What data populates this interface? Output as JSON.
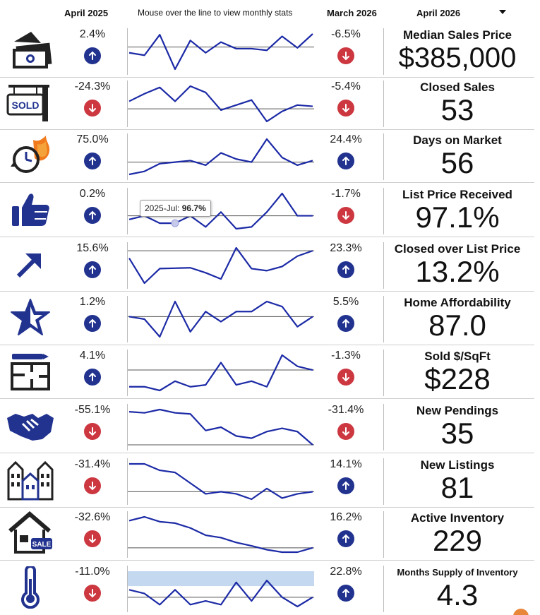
{
  "header": {
    "yoy_label": "April 2025",
    "spark_label": "Mouse over the line to view monthly stats",
    "mom_label": "March 2026",
    "month_select": "April 2026",
    "caret_icon": "chevron-down-icon"
  },
  "colors": {
    "line": "#1c2aa6",
    "up": "#22338f",
    "down": "#cc3740",
    "highlight": "#c4d8ef"
  },
  "tooltip": {
    "label": "2025-Jul:",
    "value": "96.7%"
  },
  "metrics": [
    {
      "title": "Median Sales Price",
      "value": "$385,000",
      "yoy": "2.4%",
      "yoy_dir": "up",
      "mom": "-6.5%",
      "mom_dir": "down",
      "icon": "money-icon",
      "spark": [
        60,
        57,
        82,
        40,
        75,
        60,
        73,
        65,
        65,
        63,
        80,
        66,
        83
      ],
      "baseline": 67
    },
    {
      "title": "Closed Sales",
      "value": "53",
      "yoy": "-24.3%",
      "yoy_dir": "down",
      "mom": "-5.4%",
      "mom_dir": "down",
      "icon": "sold-sign-icon",
      "spark": [
        60,
        66,
        71,
        60,
        72,
        67,
        53,
        57,
        61,
        44,
        52,
        57,
        56
      ],
      "baseline": 54
    },
    {
      "title": "Days on Market",
      "value": "56",
      "yoy": "75.0%",
      "yoy_dir": "up",
      "mom": "24.4%",
      "mom_dir": "up",
      "icon": "clock-fire-icon",
      "spark": [
        47,
        49,
        54,
        55,
        56,
        53,
        61,
        57,
        55,
        70,
        58,
        53,
        56
      ],
      "baseline": 55
    },
    {
      "title": "List Price Received",
      "value": "97.1%",
      "yoy": "0.2%",
      "yoy_dir": "up",
      "mom": "-1.7%",
      "mom_dir": "down",
      "icon": "thumbs-up-icon",
      "spark": [
        96.8,
        96.9,
        96.7,
        96.7,
        96.9,
        96.6,
        97.0,
        96.55,
        96.6,
        97.0,
        97.5,
        96.9,
        96.9
      ],
      "baseline": 96.9
    },
    {
      "title": "Closed over List Price",
      "value": "13.2%",
      "yoy": "15.6%",
      "yoy_dir": "up",
      "mom": "23.3%",
      "mom_dir": "up",
      "icon": "trend-arrow-icon",
      "spark": [
        11,
        5,
        8.5,
        8.6,
        8.7,
        7.5,
        6,
        13.5,
        8.5,
        8,
        9,
        11.5,
        12.8
      ],
      "baseline": 12.8
    },
    {
      "title": "Home Affordability",
      "value": "87.0",
      "yoy": "1.2%",
      "yoy_dir": "up",
      "mom": "5.5%",
      "mom_dir": "up",
      "icon": "star-icon",
      "spark": [
        87,
        86.5,
        83,
        90,
        84,
        88,
        86,
        88,
        88,
        90,
        89,
        85,
        87
      ],
      "baseline": 87
    },
    {
      "title": "Sold $/SqFt",
      "value": "$228",
      "yoy": "4.1%",
      "yoy_dir": "up",
      "mom": "-1.3%",
      "mom_dir": "down",
      "icon": "floor-plan-icon",
      "spark": [
        219,
        219,
        217,
        222,
        219,
        220,
        232,
        220,
        222,
        219,
        236,
        230,
        228
      ],
      "baseline": 228
    },
    {
      "title": "New Pendings",
      "value": "35",
      "yoy": "-55.1%",
      "yoy_dir": "down",
      "mom": "-31.4%",
      "mom_dir": "down",
      "icon": "handshake-icon",
      "spark": [
        80,
        79,
        82,
        79,
        78,
        63,
        66,
        58,
        56,
        62,
        65,
        62,
        50
      ],
      "baseline": 50
    },
    {
      "title": "New Listings",
      "value": "81",
      "yoy": "-31.4%",
      "yoy_dir": "down",
      "mom": "14.1%",
      "mom_dir": "up",
      "icon": "houses-icon",
      "spark": [
        118,
        118,
        112,
        110,
        100,
        90,
        92,
        90,
        85,
        95,
        86,
        90,
        92
      ],
      "baseline": 92
    },
    {
      "title": "Active Inventory",
      "value": "229",
      "yoy": "-32.6%",
      "yoy_dir": "down",
      "mom": "16.2%",
      "mom_dir": "up",
      "icon": "house-sale-icon",
      "spark": [
        330,
        338,
        328,
        325,
        315,
        300,
        295,
        285,
        278,
        270,
        265,
        265,
        274
      ],
      "baseline": 274
    },
    {
      "title": "Months Supply of Inventory",
      "value": "4.3",
      "yoy": "-11.0%",
      "yoy_dir": "down",
      "mom": "22.8%",
      "mom_dir": "up",
      "icon": "thermometer-icon",
      "spark": [
        4.4,
        4.2,
        3.6,
        4.4,
        3.6,
        3.8,
        3.6,
        4.8,
        3.8,
        4.9,
        4.0,
        3.5,
        4.0
      ],
      "baseline": 4.0,
      "band": [
        4.6,
        5.4
      ]
    }
  ]
}
